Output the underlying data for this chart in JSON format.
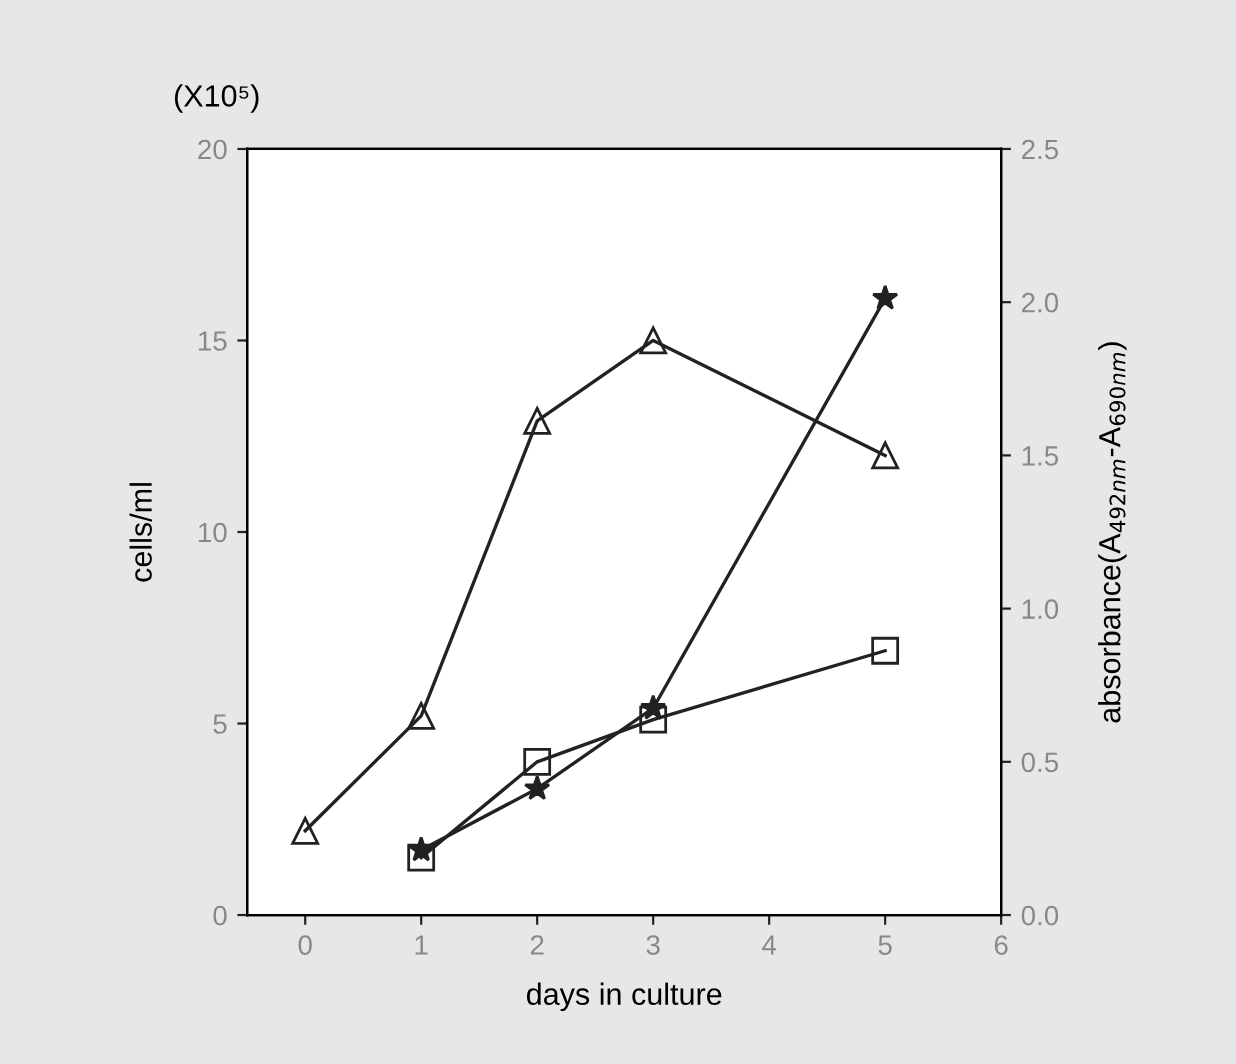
{
  "chart_data": {
    "type": "line",
    "xlabel": "days in culture",
    "ylabel": "cells/ml",
    "y2label": "absorbance(A$_{492nm}$-A$_{690nm}$)",
    "annotations": [
      "(X10⁵)"
    ],
    "series": [
      {
        "color": "#222222",
        "marker": "triangle",
        "x": [
          0,
          1,
          2,
          3,
          5
        ],
        "values": [
          2.2,
          5.2,
          12.9,
          15.0,
          12.0
        ]
      },
      {
        "color": "#222222",
        "marker": "square",
        "x": [
          1,
          2,
          3,
          5
        ],
        "values": [
          1.5,
          4.0,
          5.1,
          6.9
        ]
      },
      {
        "color": "#222222",
        "marker": "star",
        "x": [
          1,
          2,
          3,
          5
        ],
        "values": [
          1.7,
          3.3,
          5.4,
          16.1
        ]
      }
    ],
    "xlim": [
      -0.5,
      6
    ],
    "xticks": [
      0,
      1,
      2,
      3,
      4,
      5,
      6
    ],
    "ylim": [
      0,
      20
    ],
    "yticks": [
      0,
      5,
      10,
      15,
      20
    ],
    "y2lim": [
      0,
      2.5
    ],
    "y2ticks": [
      {
        "value": 0,
        "label": "0.0"
      },
      0.5,
      {
        "value": 1,
        "label": "1.0"
      },
      1.5,
      {
        "value": 2,
        "label": "2.0"
      },
      2.5
    ],
    "grid": false,
    "legend": false,
    "line_style": "solid"
  }
}
